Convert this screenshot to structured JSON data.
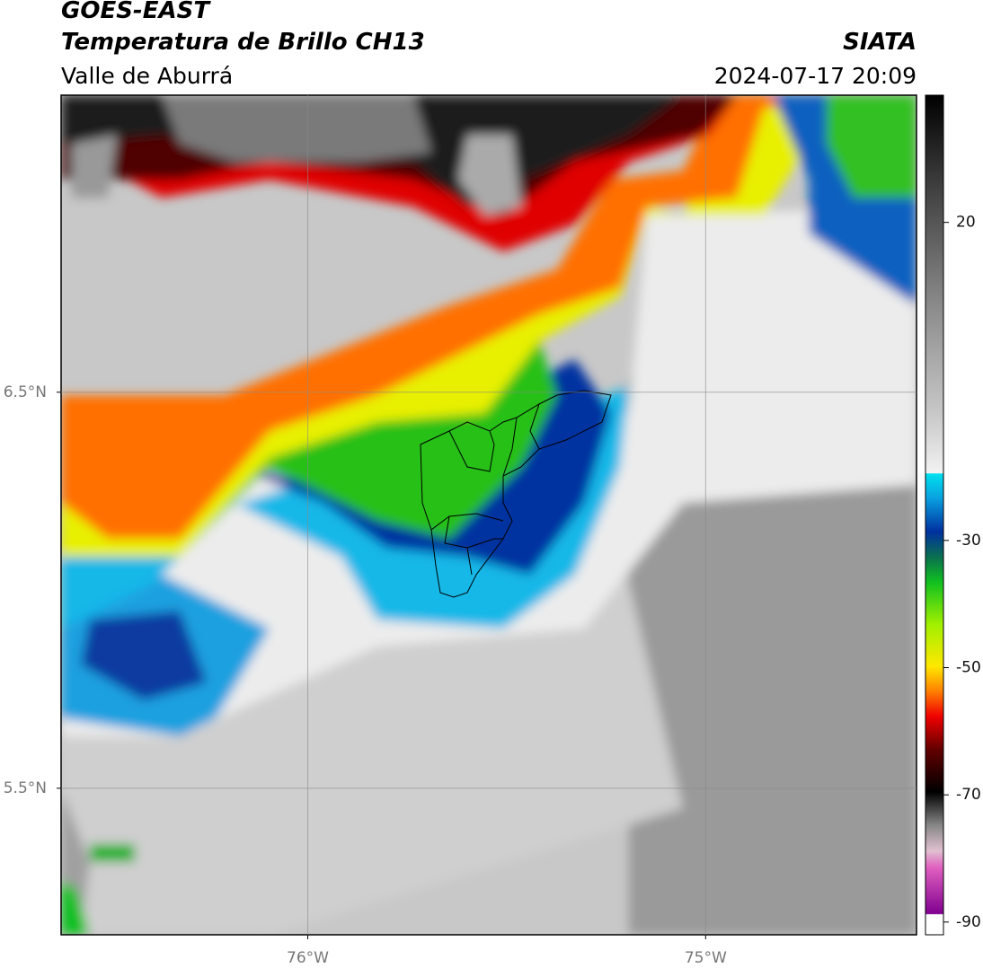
{
  "header": {
    "title": "GOES-EAST",
    "subtitle": "Temperatura de Brillo CH13",
    "region": "Valle de Aburrá",
    "source": "SIATA",
    "datetime": "2024-07-17 20:09"
  },
  "map": {
    "xlim": [
      -76.62,
      -74.47
    ],
    "ylim": [
      5.13,
      7.25
    ],
    "xticks": [
      {
        "value": -76,
        "label": "76°W"
      },
      {
        "value": -75,
        "label": "75°W"
      }
    ],
    "yticks": [
      {
        "value": 6.5,
        "label": "6.5°N"
      },
      {
        "value": 5.5,
        "label": "5.5°N"
      }
    ],
    "grid": true
  },
  "colorbar": {
    "lim": [
      -92,
      40
    ],
    "ticks": [
      -90,
      -70,
      -50,
      -30,
      20
    ]
  }
}
